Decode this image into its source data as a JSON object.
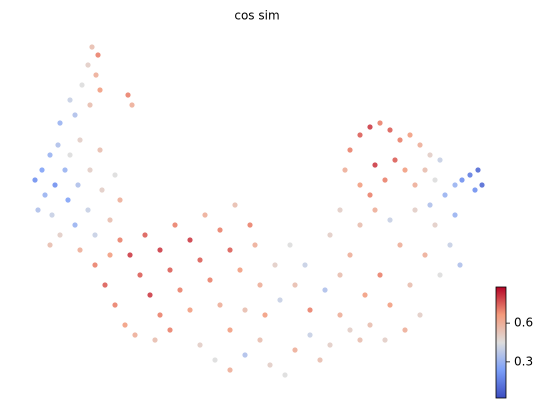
{
  "chart_data": {
    "type": "scatter",
    "title": "cos sim",
    "colormap": "coolwarm",
    "xlim": [
      0,
      460
    ],
    "ylim": [
      0,
      345
    ],
    "clim": [
      0.02,
      0.88
    ],
    "cticks": [
      0.3,
      0.6
    ],
    "x": [
      62,
      68,
      58,
      66,
      52,
      70,
      40,
      60,
      45,
      30,
      98,
      102,
      5,
      12,
      20,
      28,
      15,
      25,
      35,
      40,
      50,
      8,
      22,
      38,
      48,
      60,
      70,
      30,
      45,
      58,
      72,
      85,
      20,
      50,
      65,
      80,
      90,
      65,
      75,
      85,
      95,
      100,
      110,
      120,
      130,
      115,
      130,
      140,
      150,
      160,
      145,
      160,
      170,
      180,
      175,
      190,
      200,
      210,
      205,
      220,
      225,
      105,
      125,
      90,
      80,
      140,
      190,
      170,
      185,
      200,
      215,
      230,
      240,
      255,
      265,
      280,
      290,
      300,
      235,
      250,
      265,
      280,
      295,
      310,
      245,
      260,
      230,
      215,
      275,
      200,
      320,
      310,
      320,
      335,
      340,
      350,
      360,
      370,
      380,
      390,
      395,
      405,
      410,
      420,
      425,
      430,
      300,
      330,
      345,
      360,
      385,
      400,
      415,
      375,
      355,
      330,
      310,
      315,
      320,
      330,
      340,
      350,
      360,
      370,
      380,
      390,
      400,
      330,
      345,
      355,
      365,
      375,
      385,
      395,
      405,
      340,
      410,
      425,
      432,
      440,
      448,
      452,
      445
    ],
    "y": [
      338,
      330,
      320,
      310,
      300,
      295,
      285,
      280,
      270,
      262,
      290,
      280,
      205,
      215,
      230,
      240,
      190,
      200,
      215,
      230,
      245,
      175,
      170,
      185,
      200,
      215,
      235,
      150,
      160,
      175,
      195,
      210,
      140,
      135,
      150,
      165,
      185,
      120,
      100,
      80,
      60,
      130,
      110,
      90,
      70,
      150,
      135,
      115,
      95,
      75,
      160,
      145,
      125,
      105,
      170,
      155,
      135,
      115,
      180,
      160,
      140,
      50,
      45,
      145,
      130,
      55,
      80,
      40,
      25,
      15,
      30,
      45,
      20,
      10,
      35,
      50,
      25,
      40,
      70,
      85,
      100,
      75,
      95,
      70,
      120,
      140,
      100,
      75,
      120,
      55,
      55,
      110,
      130,
      90,
      60,
      110,
      80,
      140,
      100,
      70,
      130,
      160,
      110,
      140,
      170,
      120,
      150,
      160,
      175,
      165,
      175,
      180,
      190,
      55,
      45,
      45,
      175,
      215,
      235,
      250,
      258,
      262,
      255,
      245,
      250,
      240,
      230,
      200,
      220,
      205,
      225,
      215,
      200,
      215,
      205,
      190,
      225,
      200,
      205,
      210,
      215,
      200,
      195
    ],
    "values": [
      0.55,
      0.7,
      0.5,
      0.6,
      0.45,
      0.65,
      0.4,
      0.55,
      0.35,
      0.3,
      0.7,
      0.6,
      0.2,
      0.25,
      0.3,
      0.35,
      0.3,
      0.2,
      0.3,
      0.45,
      0.5,
      0.35,
      0.4,
      0.25,
      0.35,
      0.5,
      0.55,
      0.5,
      0.3,
      0.4,
      0.5,
      0.45,
      0.55,
      0.6,
      0.4,
      0.55,
      0.6,
      0.7,
      0.75,
      0.7,
      0.65,
      0.8,
      0.75,
      0.8,
      0.7,
      0.75,
      0.8,
      0.75,
      0.7,
      0.65,
      0.7,
      0.8,
      0.75,
      0.7,
      0.6,
      0.7,
      0.75,
      0.65,
      0.55,
      0.7,
      0.6,
      0.6,
      0.55,
      0.7,
      0.65,
      0.7,
      0.6,
      0.5,
      0.45,
      0.6,
      0.35,
      0.55,
      0.5,
      0.45,
      0.6,
      0.4,
      0.55,
      0.5,
      0.65,
      0.4,
      0.55,
      0.7,
      0.35,
      0.6,
      0.5,
      0.45,
      0.6,
      0.55,
      0.4,
      0.65,
      0.5,
      0.55,
      0.6,
      0.65,
      0.55,
      0.7,
      0.65,
      0.6,
      0.55,
      0.5,
      0.6,
      0.5,
      0.45,
      0.4,
      0.3,
      0.35,
      0.5,
      0.55,
      0.6,
      0.4,
      0.5,
      0.35,
      0.3,
      0.6,
      0.5,
      0.55,
      0.5,
      0.6,
      0.7,
      0.75,
      0.8,
      0.7,
      0.75,
      0.7,
      0.65,
      0.6,
      0.5,
      0.65,
      0.8,
      0.7,
      0.75,
      0.65,
      0.6,
      0.55,
      0.45,
      0.7,
      0.4,
      0.3,
      0.2,
      0.15,
      0.1,
      0.1,
      0.2
    ]
  }
}
